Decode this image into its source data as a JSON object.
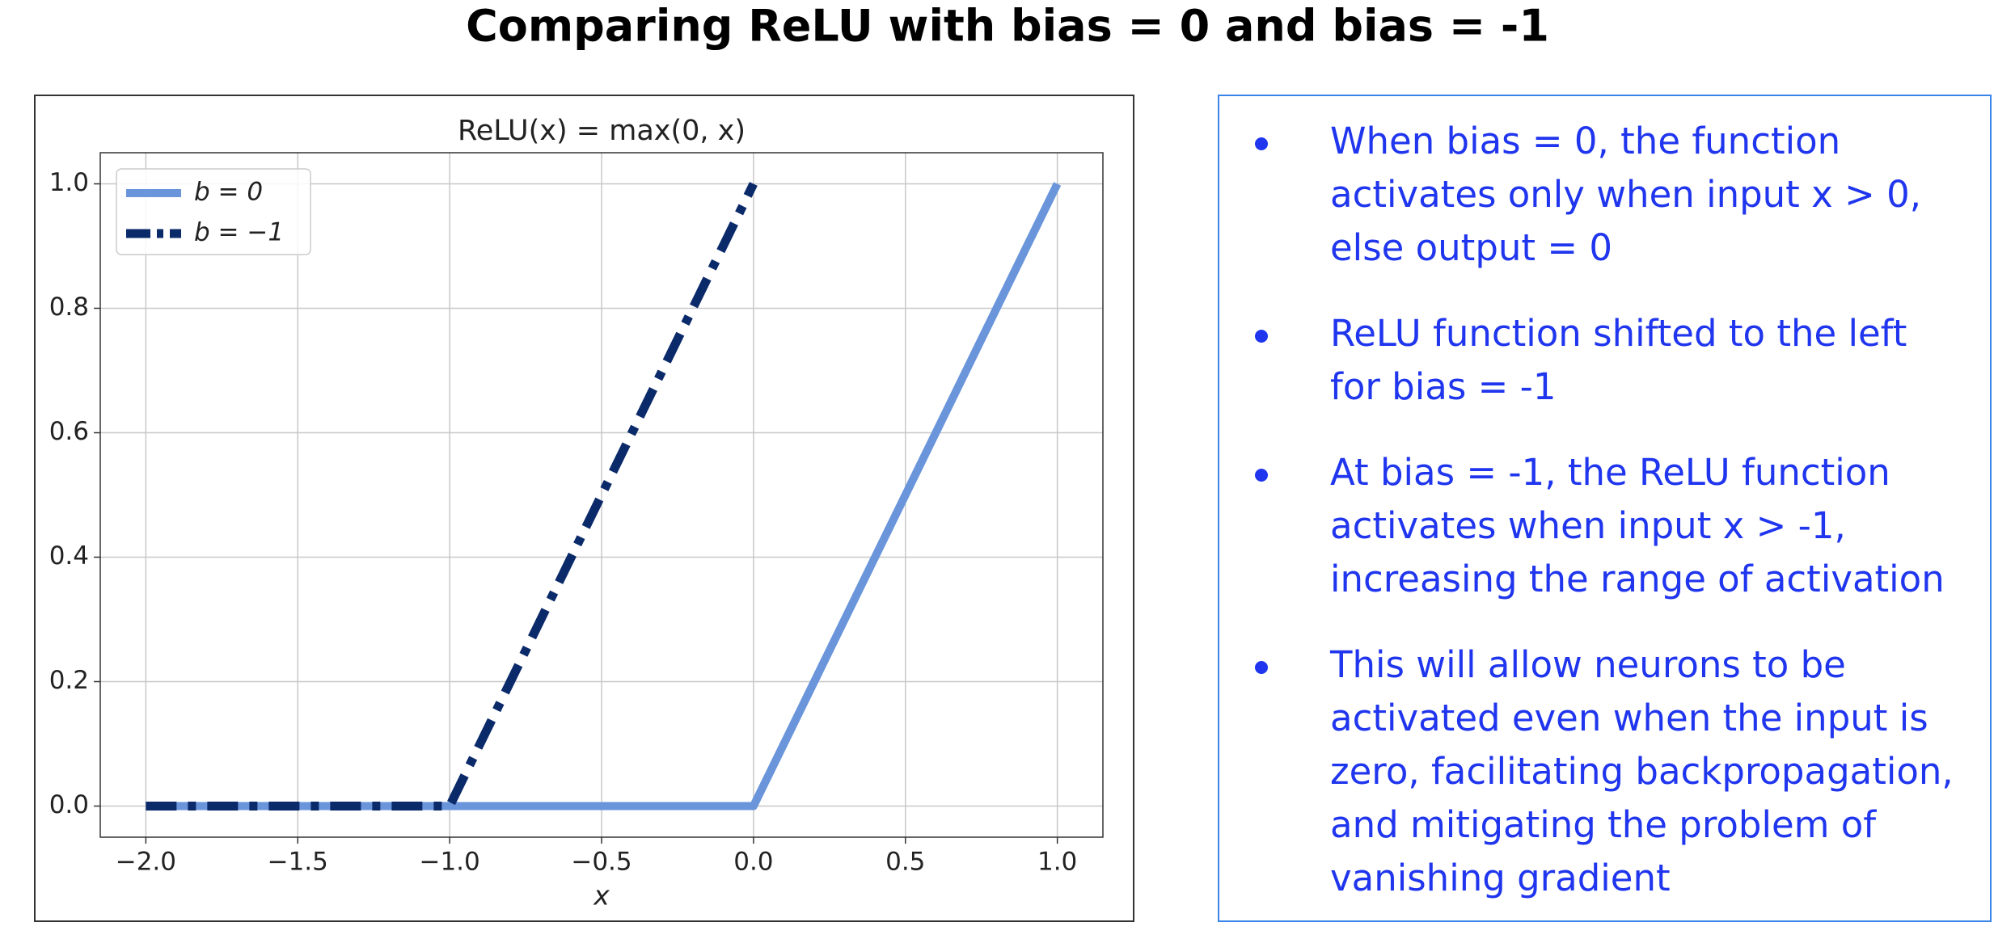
{
  "title": "Comparing ReLU with bias = 0 and bias = -1",
  "chart_data": {
    "type": "line",
    "title": "ReLU(x) = max(0, x)",
    "x_label": "x",
    "x": [
      -2,
      -1,
      0,
      1
    ],
    "series": [
      {
        "name": "b = 0",
        "color": "#6a95db",
        "values": [
          0,
          0,
          0,
          1
        ]
      },
      {
        "name": "b = −1",
        "color": "#0b2a6a",
        "values": [
          0,
          0,
          1,
          null
        ]
      }
    ],
    "xlim": [
      -2.15,
      1.15
    ],
    "ylim": [
      -0.05,
      1.05
    ],
    "xticks": [
      {
        "value": -2,
        "label": "−2.0"
      },
      {
        "value": -1.5,
        "label": "−1.5"
      },
      {
        "value": -1,
        "label": "−1.0"
      },
      {
        "value": -0.5,
        "label": "−0.5"
      },
      {
        "value": 0,
        "label": "0.0"
      },
      {
        "value": 0.5,
        "label": "0.5"
      },
      {
        "value": 1,
        "label": "1.0"
      }
    ],
    "yticks": [
      {
        "value": 0,
        "label": "0.0"
      },
      {
        "value": 0.2,
        "label": "0.2"
      },
      {
        "value": 0.4,
        "label": "0.4"
      },
      {
        "value": 0.6,
        "label": "0.6"
      },
      {
        "value": 0.8,
        "label": "0.8"
      },
      {
        "value": 1,
        "label": "1.0"
      }
    ],
    "grid": true,
    "legend": "upper left"
  },
  "panel": {
    "bullets": [
      [
        "When bias = 0, the function",
        "activates only when input x > 0,",
        "else output = 0"
      ],
      [
        "ReLU function shifted to the left",
        "for bias = -1"
      ],
      [
        "At bias = -1, the ReLU function",
        "activates when input x > -1,",
        "increasing the range of activation"
      ],
      [
        "This will allow neurons to be",
        "activated even when the input is",
        "zero, facilitating backpropagation,",
        "and mitigating the problem of",
        "vanishing gradient"
      ]
    ]
  }
}
